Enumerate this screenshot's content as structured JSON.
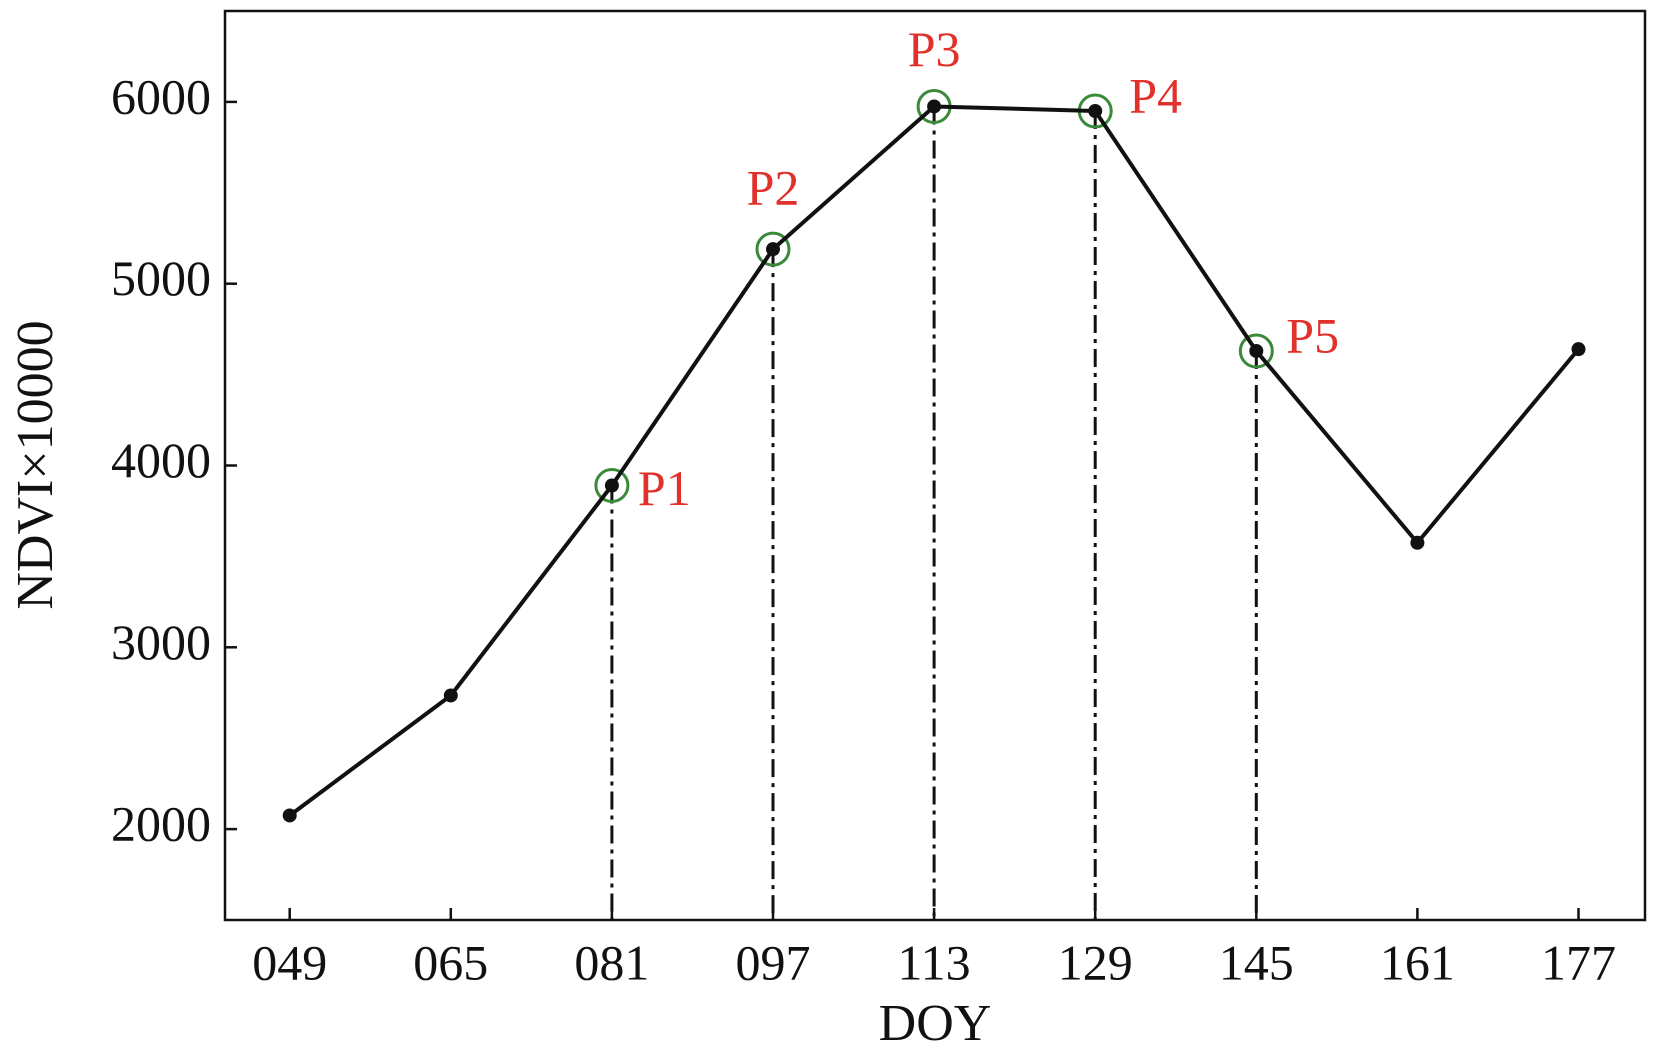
{
  "chart_data": {
    "type": "line",
    "x_label": "DOY",
    "y_label": "NDVI×10000",
    "categories": [
      "049",
      "065",
      "081",
      "097",
      "113",
      "129",
      "145",
      "161",
      "177"
    ],
    "values": [
      2075,
      2735,
      3890,
      5190,
      5975,
      5950,
      4630,
      3575,
      4640
    ],
    "color": "#111111",
    "ylim": [
      1500,
      6500
    ],
    "yticks": [
      2000,
      3000,
      4000,
      5000,
      6000
    ],
    "grid": false,
    "annotations": [
      {
        "text": "P1",
        "x": "081"
      },
      {
        "text": "P2",
        "x": "097"
      },
      {
        "text": "P3",
        "x": "113"
      },
      {
        "text": "P4",
        "x": "129"
      },
      {
        "text": "P5",
        "x": "145"
      }
    ],
    "annotation_color": "#e0312b",
    "marker_ring_color": "#3a8a3a"
  }
}
